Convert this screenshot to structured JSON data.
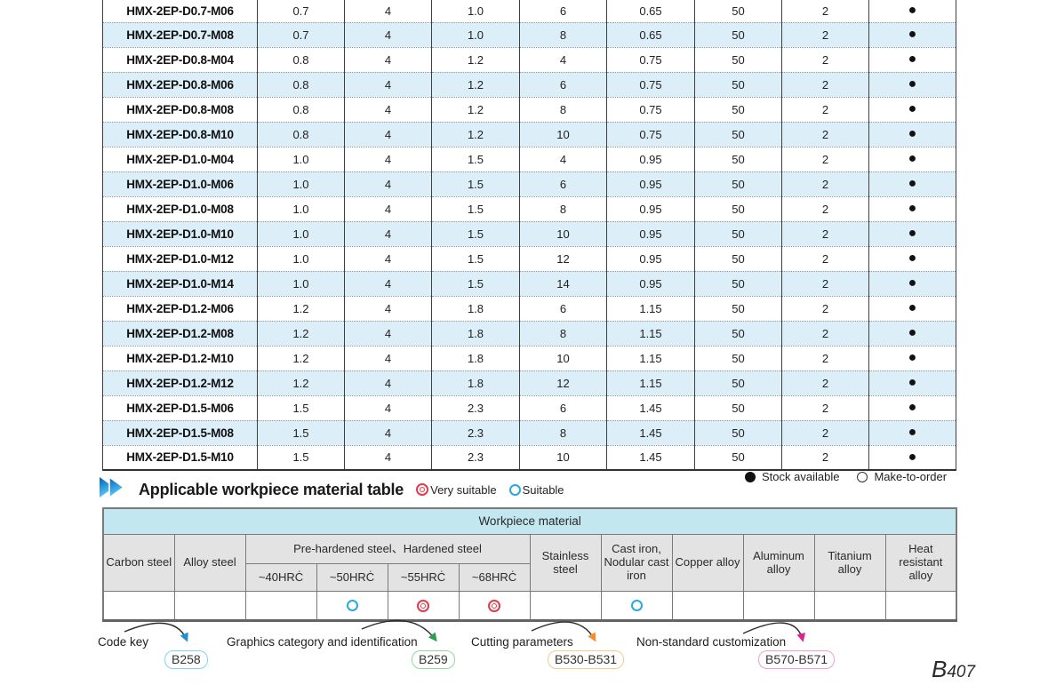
{
  "spec_table": {
    "rows": [
      {
        "model": "HMX-2EP-D0.7-M06",
        "values": [
          "0.7",
          "4",
          "1.0",
          "6",
          "0.65",
          "50",
          "2"
        ],
        "stock": "●"
      },
      {
        "model": "HMX-2EP-D0.7-M08",
        "values": [
          "0.7",
          "4",
          "1.0",
          "8",
          "0.65",
          "50",
          "2"
        ],
        "stock": "●"
      },
      {
        "model": "HMX-2EP-D0.8-M04",
        "values": [
          "0.8",
          "4",
          "1.2",
          "4",
          "0.75",
          "50",
          "2"
        ],
        "stock": "●"
      },
      {
        "model": "HMX-2EP-D0.8-M06",
        "values": [
          "0.8",
          "4",
          "1.2",
          "6",
          "0.75",
          "50",
          "2"
        ],
        "stock": "●"
      },
      {
        "model": "HMX-2EP-D0.8-M08",
        "values": [
          "0.8",
          "4",
          "1.2",
          "8",
          "0.75",
          "50",
          "2"
        ],
        "stock": "●"
      },
      {
        "model": "HMX-2EP-D0.8-M10",
        "values": [
          "0.8",
          "4",
          "1.2",
          "10",
          "0.75",
          "50",
          "2"
        ],
        "stock": "●"
      },
      {
        "model": "HMX-2EP-D1.0-M04",
        "values": [
          "1.0",
          "4",
          "1.5",
          "4",
          "0.95",
          "50",
          "2"
        ],
        "stock": "●"
      },
      {
        "model": "HMX-2EP-D1.0-M06",
        "values": [
          "1.0",
          "4",
          "1.5",
          "6",
          "0.95",
          "50",
          "2"
        ],
        "stock": "●"
      },
      {
        "model": "HMX-2EP-D1.0-M08",
        "values": [
          "1.0",
          "4",
          "1.5",
          "8",
          "0.95",
          "50",
          "2"
        ],
        "stock": "●"
      },
      {
        "model": "HMX-2EP-D1.0-M10",
        "values": [
          "1.0",
          "4",
          "1.5",
          "10",
          "0.95",
          "50",
          "2"
        ],
        "stock": "●"
      },
      {
        "model": "HMX-2EP-D1.0-M12",
        "values": [
          "1.0",
          "4",
          "1.5",
          "12",
          "0.95",
          "50",
          "2"
        ],
        "stock": "●"
      },
      {
        "model": "HMX-2EP-D1.0-M14",
        "values": [
          "1.0",
          "4",
          "1.5",
          "14",
          "0.95",
          "50",
          "2"
        ],
        "stock": "●"
      },
      {
        "model": "HMX-2EP-D1.2-M06",
        "values": [
          "1.2",
          "4",
          "1.8",
          "6",
          "1.15",
          "50",
          "2"
        ],
        "stock": "●"
      },
      {
        "model": "HMX-2EP-D1.2-M08",
        "values": [
          "1.2",
          "4",
          "1.8",
          "8",
          "1.15",
          "50",
          "2"
        ],
        "stock": "●"
      },
      {
        "model": "HMX-2EP-D1.2-M10",
        "values": [
          "1.2",
          "4",
          "1.8",
          "10",
          "1.15",
          "50",
          "2"
        ],
        "stock": "●"
      },
      {
        "model": "HMX-2EP-D1.2-M12",
        "values": [
          "1.2",
          "4",
          "1.8",
          "12",
          "1.15",
          "50",
          "2"
        ],
        "stock": "●"
      },
      {
        "model": "HMX-2EP-D1.5-M06",
        "values": [
          "1.5",
          "4",
          "2.3",
          "6",
          "1.45",
          "50",
          "2"
        ],
        "stock": "●"
      },
      {
        "model": "HMX-2EP-D1.5-M08",
        "values": [
          "1.5",
          "4",
          "2.3",
          "8",
          "1.45",
          "50",
          "2"
        ],
        "stock": "●"
      },
      {
        "model": "HMX-2EP-D1.5-M10",
        "values": [
          "1.5",
          "4",
          "2.3",
          "10",
          "1.45",
          "50",
          "2"
        ],
        "stock": "●"
      }
    ]
  },
  "section": {
    "title": "Applicable workpiece material table",
    "legend_very_suitable": "Very suitable",
    "legend_suitable": "Suitable",
    "legend_stock_available": "Stock available",
    "legend_make_to_order": "Make-to-order"
  },
  "material_table": {
    "title": "Workpiece material",
    "headers": {
      "carbon_steel": "Carbon steel",
      "alloy_steel": "Alloy steel",
      "prehardened_hardened": "Pre-hardened steel、Hardened steel",
      "stainless_steel": "Stainless steel",
      "cast_iron": "Cast iron, Nodular cast iron",
      "copper_alloy": "Copper alloy",
      "aluminum_alloy": "Aluminum alloy",
      "titanium_alloy": "Titanium alloy",
      "heat_resistant_alloy": "Heat resistant alloy"
    },
    "sub_headers": [
      "~40HRĊ",
      "~50HRĊ",
      "~55HRĊ",
      "~68HRĊ"
    ],
    "suitability": [
      "",
      "",
      "",
      "suitable",
      "very-suitable",
      "very-suitable",
      "",
      "suitable",
      "",
      "",
      "",
      ""
    ]
  },
  "footnotes": {
    "items": [
      {
        "label": "Code key",
        "ref": "B258"
      },
      {
        "label": "Graphics category and identification",
        "ref": "B259"
      },
      {
        "label": "Cutting parameters",
        "ref": "B530-B531"
      },
      {
        "label": "Non-standard customization",
        "ref": "B570-B571"
      }
    ],
    "page_number_prefix": "B",
    "page_number": "407"
  },
  "colors": {
    "very_suitable": "#e23b4e",
    "suitable": "#29a8e0",
    "row_alt": "#dceef8",
    "material_title_bg": "#c2e7f1",
    "header_bg": "#e3e3e3",
    "ref_b258_border": "#86d3ee",
    "ref_b259_border": "#8fd6a4",
    "ref_b530_border": "#f6c98f",
    "ref_b570_border": "#f2a0c8"
  }
}
